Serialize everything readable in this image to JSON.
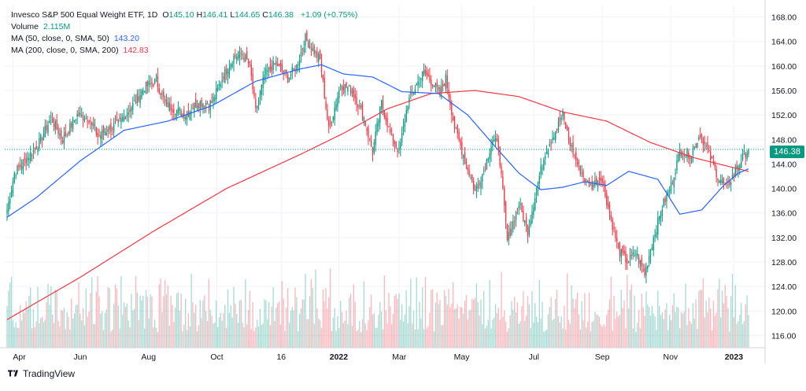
{
  "legend": {
    "title": "Invesco S&P 500 Equal Weight ETF, 1D",
    "ohlc": [
      {
        "key": "O",
        "value": "145.10"
      },
      {
        "key": "H",
        "value": "146.41"
      },
      {
        "key": "L",
        "value": "144.65"
      },
      {
        "key": "C",
        "value": "146.38"
      }
    ],
    "change": "+1.09 (+0.75%)",
    "volume_label": "Volume",
    "volume_value": "2.115M",
    "ma50_label": "MA (50, close, 0, SMA, 50)",
    "ma50_value": "143.20",
    "ma200_label": "MA (200, close, 0, SMA, 200)",
    "ma200_value": "142.83"
  },
  "last_price_tag": "146.38",
  "footer": {
    "brand": "TradingView"
  },
  "colors": {
    "up": "#089981",
    "down": "#f23645",
    "ma50": "#2962ff",
    "ma200": "#f23645",
    "grid": "#f0f3fa",
    "axis_text": "#131722",
    "last_price_line": "#089981"
  },
  "chart_data": {
    "type": "candlestick",
    "title": "Invesco S&P 500 Equal Weight ETF, 1D",
    "y_axis_ticks": [
      "116.00",
      "120.00",
      "124.00",
      "128.00",
      "132.00",
      "136.00",
      "140.00",
      "144.00",
      "148.00",
      "152.00",
      "156.00",
      "160.00",
      "164.00",
      "168.00"
    ],
    "ylim": [
      114,
      170
    ],
    "x_axis_ticks": [
      "Apr",
      "Jun",
      "Aug",
      "Oct",
      "16",
      "2022",
      "Mar",
      "May",
      "Jul",
      "Sep",
      "Nov",
      "2023"
    ],
    "bold_ticks": [
      "2022",
      "2023"
    ],
    "last_close": 146.38,
    "grid": true,
    "price_anchors": [
      [
        0,
        136.5
      ],
      [
        5,
        142.5
      ],
      [
        12,
        144.5
      ],
      [
        22,
        147.5
      ],
      [
        30,
        151.5
      ],
      [
        38,
        148
      ],
      [
        48,
        152
      ],
      [
        56,
        151.5
      ],
      [
        62,
        148.5
      ],
      [
        68,
        149.5
      ],
      [
        76,
        150.5
      ],
      [
        84,
        153
      ],
      [
        94,
        156.5
      ],
      [
        102,
        157.5
      ],
      [
        108,
        154
      ],
      [
        114,
        153
      ],
      [
        122,
        152
      ],
      [
        130,
        154
      ],
      [
        140,
        154
      ],
      [
        148,
        158.5
      ],
      [
        155,
        161.5
      ],
      [
        161,
        162
      ],
      [
        166,
        160
      ],
      [
        170,
        152.5
      ],
      [
        176,
        158.5
      ],
      [
        184,
        160.5
      ],
      [
        192,
        158
      ],
      [
        198,
        160
      ],
      [
        204,
        164.5
      ],
      [
        208,
        163
      ],
      [
        214,
        161
      ],
      [
        220,
        149.5
      ],
      [
        228,
        157
      ],
      [
        236,
        156
      ],
      [
        244,
        151.5
      ],
      [
        250,
        146
      ],
      [
        256,
        154
      ],
      [
        262,
        149
      ],
      [
        268,
        146
      ],
      [
        274,
        154
      ],
      [
        280,
        157
      ],
      [
        285,
        159
      ],
      [
        290,
        157.5
      ],
      [
        296,
        155.5
      ],
      [
        300,
        158
      ],
      [
        306,
        150
      ],
      [
        314,
        144
      ],
      [
        320,
        139.5
      ],
      [
        326,
        143
      ],
      [
        332,
        148
      ],
      [
        336,
        147
      ],
      [
        342,
        131.5
      ],
      [
        350,
        137.5
      ],
      [
        356,
        133
      ],
      [
        362,
        140
      ],
      [
        368,
        146
      ],
      [
        374,
        149
      ],
      [
        380,
        152
      ],
      [
        384,
        148
      ],
      [
        390,
        144
      ],
      [
        396,
        141
      ],
      [
        400,
        140.5
      ],
      [
        406,
        142
      ],
      [
        412,
        136
      ],
      [
        418,
        130
      ],
      [
        424,
        128
      ],
      [
        430,
        129.5
      ],
      [
        436,
        126
      ],
      [
        442,
        132
      ],
      [
        448,
        137
      ],
      [
        454,
        140.5
      ],
      [
        460,
        146
      ],
      [
        468,
        145.5
      ],
      [
        474,
        149
      ],
      [
        480,
        145.5
      ],
      [
        486,
        142
      ],
      [
        492,
        140
      ],
      [
        498,
        143
      ],
      [
        504,
        145.5
      ],
      [
        507,
        146.4
      ]
    ],
    "volume_range_shares": [
      0.8,
      4.5
    ],
    "ma50_anchors": [
      [
        0,
        135.3
      ],
      [
        20,
        138.5
      ],
      [
        50,
        144.5
      ],
      [
        80,
        149.5
      ],
      [
        110,
        151
      ],
      [
        140,
        153.5
      ],
      [
        170,
        157.5
      ],
      [
        200,
        159.5
      ],
      [
        215,
        160.2
      ],
      [
        230,
        158.7
      ],
      [
        250,
        158.2
      ],
      [
        270,
        155.8
      ],
      [
        295,
        155.5
      ],
      [
        315,
        152
      ],
      [
        335,
        146.5
      ],
      [
        350,
        142.5
      ],
      [
        365,
        139.8
      ],
      [
        380,
        140.2
      ],
      [
        395,
        141.1
      ],
      [
        410,
        140.5
      ],
      [
        425,
        142.8
      ],
      [
        445,
        141.5
      ],
      [
        460,
        135.8
      ],
      [
        475,
        136.5
      ],
      [
        490,
        140.5
      ],
      [
        500,
        142.5
      ],
      [
        507,
        143.2
      ]
    ],
    "ma200_anchors": [
      [
        0,
        118.6
      ],
      [
        50,
        125.5
      ],
      [
        100,
        133
      ],
      [
        150,
        140
      ],
      [
        200,
        145.5
      ],
      [
        230,
        149
      ],
      [
        260,
        153
      ],
      [
        290,
        155.5
      ],
      [
        320,
        156
      ],
      [
        350,
        155
      ],
      [
        380,
        152.5
      ],
      [
        410,
        151
      ],
      [
        440,
        147.5
      ],
      [
        470,
        145
      ],
      [
        490,
        143.8
      ],
      [
        507,
        142.8
      ]
    ]
  }
}
